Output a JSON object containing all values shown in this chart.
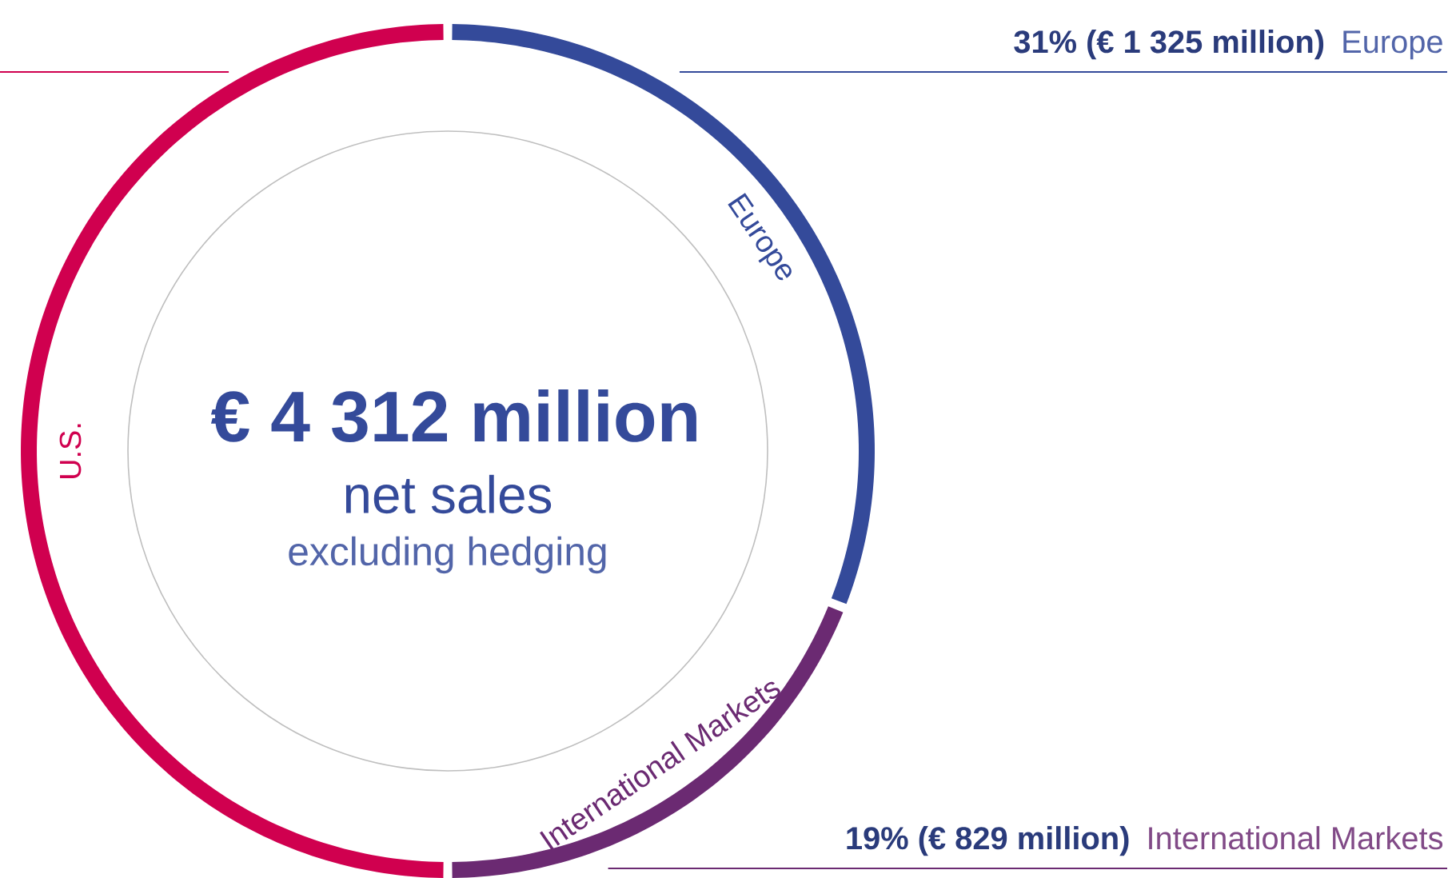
{
  "chart_data": {
    "type": "donut",
    "title": "€ 4 312 million",
    "subtitle": "net sales",
    "annotations": [
      "excluding hedging"
    ],
    "categories": [
      "Europe",
      "International Markets",
      "U.S."
    ],
    "values": [
      31,
      19,
      50
    ],
    "colors": [
      "#344a9a",
      "#6b2a72",
      "#d0004f"
    ],
    "value_labels": [
      "31% (€ 1 325 million)",
      "19% (€ 829 million)",
      null
    ]
  }
}
